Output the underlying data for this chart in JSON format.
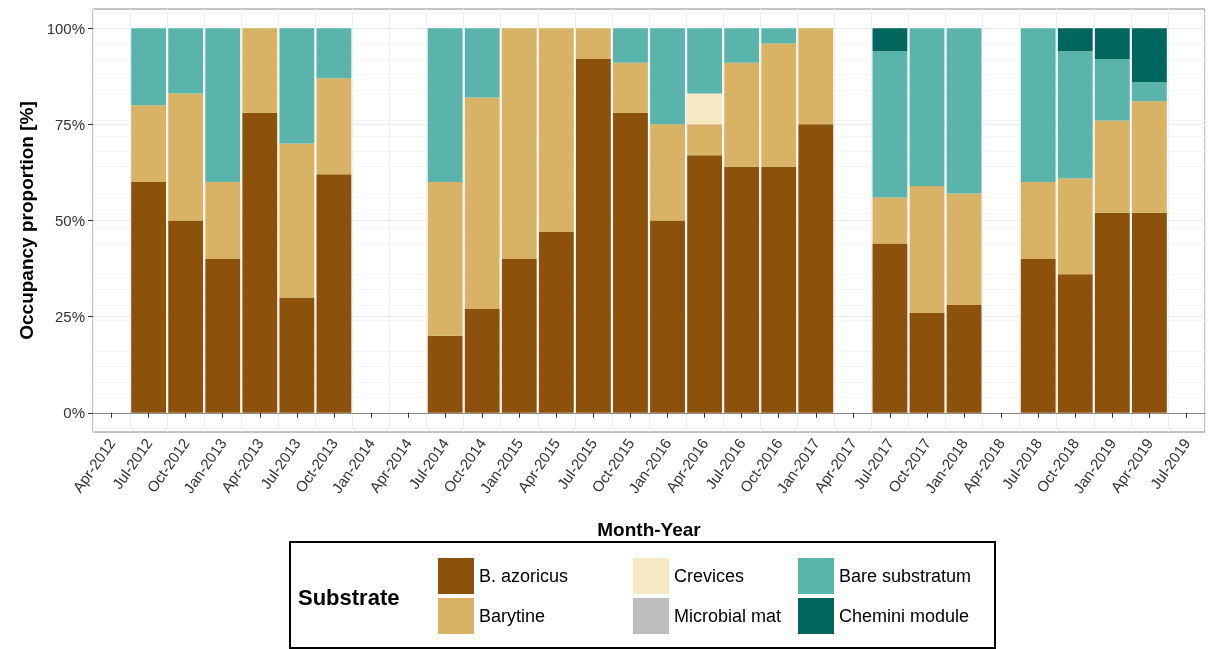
{
  "chart_data": {
    "type": "bar",
    "stacked": true,
    "xlabel": "Month-Year",
    "ylabel": "Occupancy proportion [%]",
    "legend_title": "Substrate",
    "legend": "bottom",
    "grid": true,
    "categories": [
      "Apr-2012",
      "Jul-2012",
      "Oct-2012",
      "Jan-2013",
      "Apr-2013",
      "Jul-2013",
      "Oct-2013",
      "Jan-2014",
      "Apr-2014",
      "Jul-2014",
      "Oct-2014",
      "Jan-2015",
      "Apr-2015",
      "Jul-2015",
      "Oct-2015",
      "Jan-2016",
      "Apr-2016",
      "Jul-2016",
      "Oct-2016",
      "Jan-2017",
      "Apr-2017",
      "Jul-2017",
      "Oct-2017",
      "Jan-2018",
      "Apr-2018",
      "Jul-2018",
      "Oct-2018",
      "Jan-2019",
      "Apr-2019",
      "Jul-2019"
    ],
    "ylim": [
      -5,
      105
    ],
    "yticks": [
      {
        "value": 0,
        "label": "0%"
      },
      {
        "value": 25,
        "label": "25%"
      },
      {
        "value": 50,
        "label": "50%"
      },
      {
        "value": 75,
        "label": "75%"
      },
      {
        "value": 100,
        "label": "100%"
      }
    ],
    "series": [
      {
        "name": "B. azoricus",
        "color": "#8c510a",
        "values": [
          null,
          60,
          50,
          40,
          78,
          30,
          62,
          null,
          null,
          20,
          27,
          40,
          47,
          92,
          78,
          50,
          67,
          64,
          64,
          75,
          null,
          44,
          26,
          28,
          null,
          40,
          36,
          52,
          52,
          null
        ]
      },
      {
        "name": "Barytine",
        "color": "#d8b365",
        "values": [
          null,
          20,
          33,
          20,
          22,
          40,
          25,
          null,
          null,
          40,
          55,
          60,
          53,
          8,
          13,
          25,
          8,
          27,
          32,
          25,
          null,
          12,
          33,
          29,
          null,
          20,
          25,
          24,
          29,
          null
        ]
      },
      {
        "name": "Crevices",
        "color": "#f6e8c3",
        "values": [
          null,
          null,
          null,
          null,
          null,
          null,
          null,
          null,
          null,
          null,
          null,
          null,
          null,
          null,
          null,
          null,
          8,
          null,
          null,
          null,
          null,
          null,
          null,
          null,
          null,
          null,
          null,
          null,
          null,
          null
        ]
      },
      {
        "name": "Microbial mat",
        "color": "#bdbdbd",
        "values": [
          null,
          null,
          null,
          null,
          null,
          null,
          null,
          null,
          null,
          null,
          null,
          null,
          null,
          null,
          null,
          null,
          null,
          null,
          null,
          null,
          null,
          null,
          null,
          null,
          null,
          null,
          null,
          null,
          null,
          null
        ]
      },
      {
        "name": "Bare substratum",
        "color": "#5ab4ac",
        "values": [
          null,
          20,
          17,
          40,
          null,
          30,
          13,
          null,
          null,
          40,
          18,
          null,
          null,
          null,
          9,
          25,
          17,
          9,
          4,
          null,
          null,
          38,
          41,
          43,
          null,
          40,
          33,
          16,
          5,
          null
        ]
      },
      {
        "name": "Chemini module",
        "color": "#01665e",
        "values": [
          null,
          null,
          null,
          null,
          null,
          null,
          null,
          null,
          null,
          null,
          null,
          null,
          null,
          null,
          null,
          null,
          null,
          null,
          null,
          null,
          null,
          6,
          null,
          null,
          null,
          null,
          6,
          8,
          14,
          null
        ]
      }
    ]
  }
}
